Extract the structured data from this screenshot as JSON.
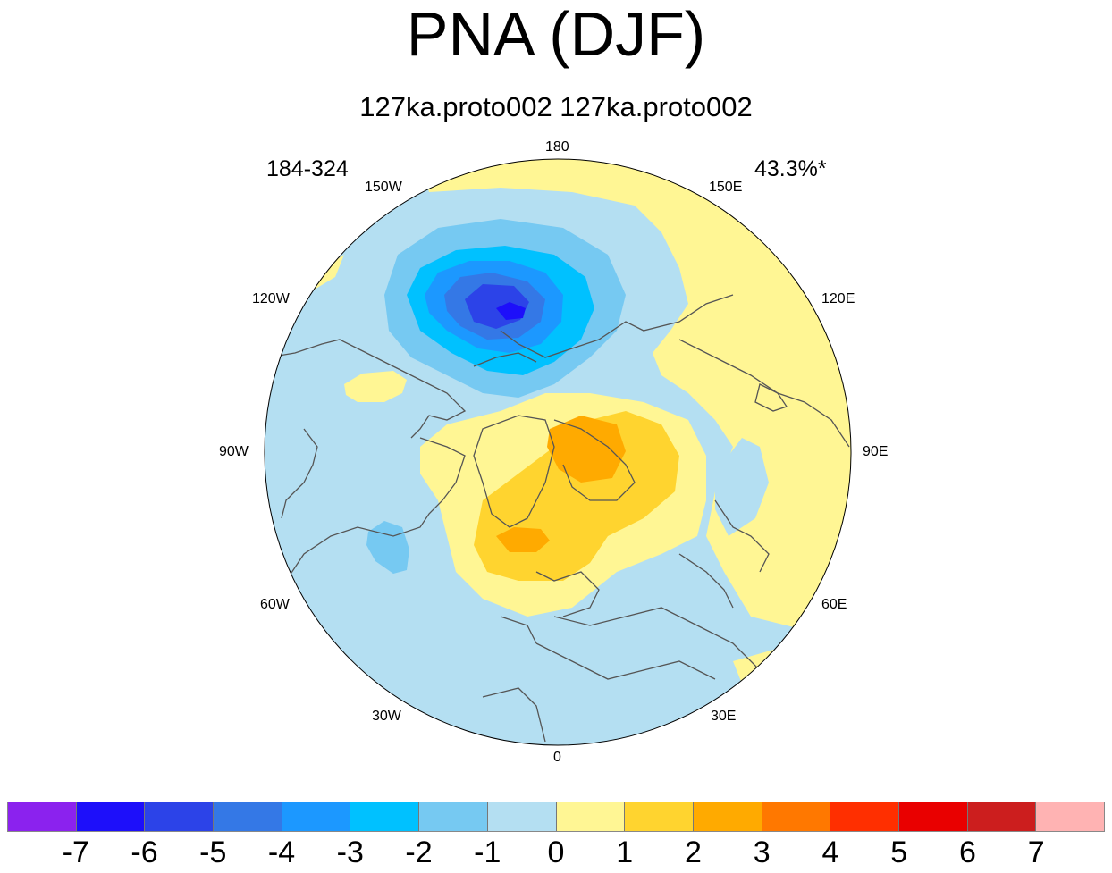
{
  "title": "PNA (DJF)",
  "subtitle": "127ka.proto002  127ka.proto002",
  "corner_left": "184-324",
  "corner_right": "43.3%*",
  "longitude_labels": {
    "lon_180": "180",
    "lon_150e": "150E",
    "lon_120e": "120E",
    "lon_90e": "90E",
    "lon_60e": "60E",
    "lon_30e": "30E",
    "lon_0": "0",
    "lon_30w": "30W",
    "lon_60w": "60W",
    "lon_90w": "90W",
    "lon_120w": "120W",
    "lon_150w": "150W"
  },
  "colorbar": {
    "colors": [
      "#8b22ee",
      "#1d0ffa",
      "#2c43e8",
      "#3478e6",
      "#1c98ff",
      "#00c1ff",
      "#76c9f2",
      "#b4dff2",
      "#fff694",
      "#ffd42f",
      "#ffaa00",
      "#ff7800",
      "#ff2f00",
      "#e90000",
      "#cc1e1e",
      "#ffb3b3"
    ],
    "labels": [
      "-7",
      "-6",
      "-5",
      "-4",
      "-3",
      "-2",
      "-1",
      "0",
      "1",
      "2",
      "3",
      "4",
      "5",
      "6",
      "7"
    ]
  },
  "map_colors": {
    "ocean_border": "#000000",
    "coastline": "#555555"
  }
}
